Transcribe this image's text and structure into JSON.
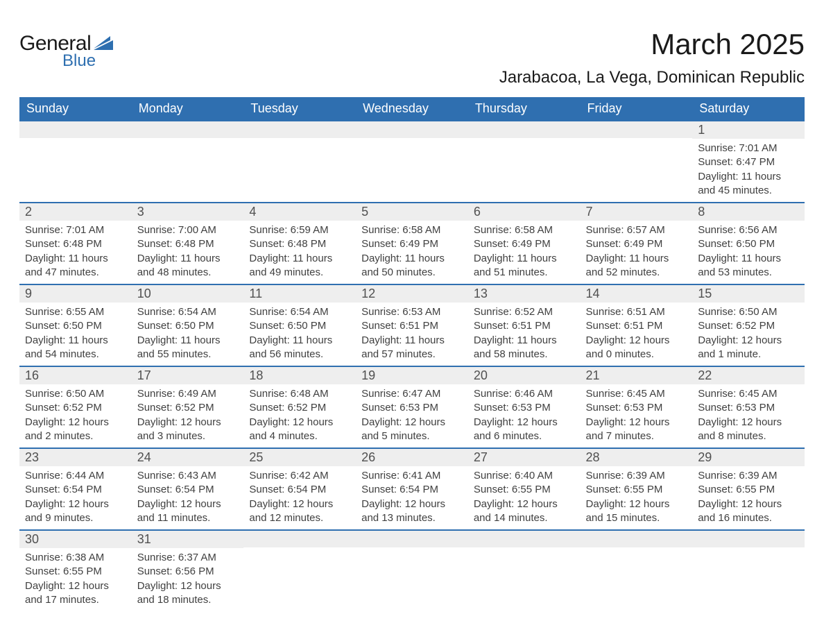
{
  "logo": {
    "word1": "General",
    "word2": "Blue",
    "mark_color": "#2e6fb0"
  },
  "title": "March 2025",
  "location": "Jarabacoa, La Vega, Dominican Republic",
  "colors": {
    "header_bg": "#2f6fb0",
    "header_text": "#ffffff",
    "daynum_bg": "#eeeeee",
    "row_divider": "#2f6fb0",
    "text": "#404040"
  },
  "weekdays": [
    "Sunday",
    "Monday",
    "Tuesday",
    "Wednesday",
    "Thursday",
    "Friday",
    "Saturday"
  ],
  "first_weekday_index": 6,
  "days": [
    {
      "n": 1,
      "sunrise": "7:01 AM",
      "sunset": "6:47 PM",
      "daylight": "11 hours and 45 minutes."
    },
    {
      "n": 2,
      "sunrise": "7:01 AM",
      "sunset": "6:48 PM",
      "daylight": "11 hours and 47 minutes."
    },
    {
      "n": 3,
      "sunrise": "7:00 AM",
      "sunset": "6:48 PM",
      "daylight": "11 hours and 48 minutes."
    },
    {
      "n": 4,
      "sunrise": "6:59 AM",
      "sunset": "6:48 PM",
      "daylight": "11 hours and 49 minutes."
    },
    {
      "n": 5,
      "sunrise": "6:58 AM",
      "sunset": "6:49 PM",
      "daylight": "11 hours and 50 minutes."
    },
    {
      "n": 6,
      "sunrise": "6:58 AM",
      "sunset": "6:49 PM",
      "daylight": "11 hours and 51 minutes."
    },
    {
      "n": 7,
      "sunrise": "6:57 AM",
      "sunset": "6:49 PM",
      "daylight": "11 hours and 52 minutes."
    },
    {
      "n": 8,
      "sunrise": "6:56 AM",
      "sunset": "6:50 PM",
      "daylight": "11 hours and 53 minutes."
    },
    {
      "n": 9,
      "sunrise": "6:55 AM",
      "sunset": "6:50 PM",
      "daylight": "11 hours and 54 minutes."
    },
    {
      "n": 10,
      "sunrise": "6:54 AM",
      "sunset": "6:50 PM",
      "daylight": "11 hours and 55 minutes."
    },
    {
      "n": 11,
      "sunrise": "6:54 AM",
      "sunset": "6:50 PM",
      "daylight": "11 hours and 56 minutes."
    },
    {
      "n": 12,
      "sunrise": "6:53 AM",
      "sunset": "6:51 PM",
      "daylight": "11 hours and 57 minutes."
    },
    {
      "n": 13,
      "sunrise": "6:52 AM",
      "sunset": "6:51 PM",
      "daylight": "11 hours and 58 minutes."
    },
    {
      "n": 14,
      "sunrise": "6:51 AM",
      "sunset": "6:51 PM",
      "daylight": "12 hours and 0 minutes."
    },
    {
      "n": 15,
      "sunrise": "6:50 AM",
      "sunset": "6:52 PM",
      "daylight": "12 hours and 1 minute."
    },
    {
      "n": 16,
      "sunrise": "6:50 AM",
      "sunset": "6:52 PM",
      "daylight": "12 hours and 2 minutes."
    },
    {
      "n": 17,
      "sunrise": "6:49 AM",
      "sunset": "6:52 PM",
      "daylight": "12 hours and 3 minutes."
    },
    {
      "n": 18,
      "sunrise": "6:48 AM",
      "sunset": "6:52 PM",
      "daylight": "12 hours and 4 minutes."
    },
    {
      "n": 19,
      "sunrise": "6:47 AM",
      "sunset": "6:53 PM",
      "daylight": "12 hours and 5 minutes."
    },
    {
      "n": 20,
      "sunrise": "6:46 AM",
      "sunset": "6:53 PM",
      "daylight": "12 hours and 6 minutes."
    },
    {
      "n": 21,
      "sunrise": "6:45 AM",
      "sunset": "6:53 PM",
      "daylight": "12 hours and 7 minutes."
    },
    {
      "n": 22,
      "sunrise": "6:45 AM",
      "sunset": "6:53 PM",
      "daylight": "12 hours and 8 minutes."
    },
    {
      "n": 23,
      "sunrise": "6:44 AM",
      "sunset": "6:54 PM",
      "daylight": "12 hours and 9 minutes."
    },
    {
      "n": 24,
      "sunrise": "6:43 AM",
      "sunset": "6:54 PM",
      "daylight": "12 hours and 11 minutes."
    },
    {
      "n": 25,
      "sunrise": "6:42 AM",
      "sunset": "6:54 PM",
      "daylight": "12 hours and 12 minutes."
    },
    {
      "n": 26,
      "sunrise": "6:41 AM",
      "sunset": "6:54 PM",
      "daylight": "12 hours and 13 minutes."
    },
    {
      "n": 27,
      "sunrise": "6:40 AM",
      "sunset": "6:55 PM",
      "daylight": "12 hours and 14 minutes."
    },
    {
      "n": 28,
      "sunrise": "6:39 AM",
      "sunset": "6:55 PM",
      "daylight": "12 hours and 15 minutes."
    },
    {
      "n": 29,
      "sunrise": "6:39 AM",
      "sunset": "6:55 PM",
      "daylight": "12 hours and 16 minutes."
    },
    {
      "n": 30,
      "sunrise": "6:38 AM",
      "sunset": "6:55 PM",
      "daylight": "12 hours and 17 minutes."
    },
    {
      "n": 31,
      "sunrise": "6:37 AM",
      "sunset": "6:56 PM",
      "daylight": "12 hours and 18 minutes."
    }
  ],
  "labels": {
    "sunrise": "Sunrise:",
    "sunset": "Sunset:",
    "daylight": "Daylight:"
  }
}
